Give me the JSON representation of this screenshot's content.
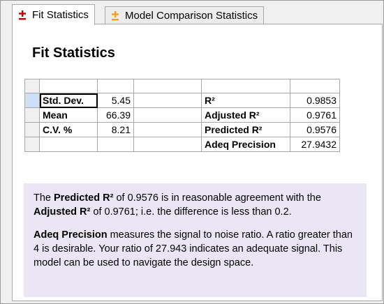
{
  "tabs": [
    {
      "label": "Fit Statistics",
      "icon": "plus-minus-icon",
      "icon_color": "#c00000",
      "active": true
    },
    {
      "label": "Model Comparison Statistics",
      "icon": "plus-minus-icon",
      "icon_color": "#f0a020",
      "active": false
    }
  ],
  "page_title": "Fit Statistics",
  "stats_table": {
    "left": [
      {
        "label": "Std. Dev.",
        "value": "5.45"
      },
      {
        "label": "Mean",
        "value": "66.39"
      },
      {
        "label": "C.V. %",
        "value": "8.21"
      }
    ],
    "right": [
      {
        "label": "R²",
        "value": "0.9853"
      },
      {
        "label": "Adjusted R²",
        "value": "0.9761"
      },
      {
        "label": "Predicted R²",
        "value": "0.9576"
      },
      {
        "label": "Adeq Precision",
        "value": "27.9432"
      }
    ]
  },
  "note": {
    "p1": {
      "t1": "The ",
      "b1": "Predicted R²",
      "t2": " of 0.9576 is in reasonable agreement with the ",
      "b2": "Adjusted R²",
      "t3": " of 0.9761; i.e. the difference is less than 0.2."
    },
    "p2": {
      "b1": "Adeq Precision",
      "t1": " measures the signal to noise ratio. A ratio greater than 4 is desirable. Your ratio of 27.943 indicates an adequate signal. This model can be used to navigate the design space."
    }
  },
  "colors": {
    "note_background": "#ebe6f6",
    "selected_row_header": "#cfe0f6"
  }
}
